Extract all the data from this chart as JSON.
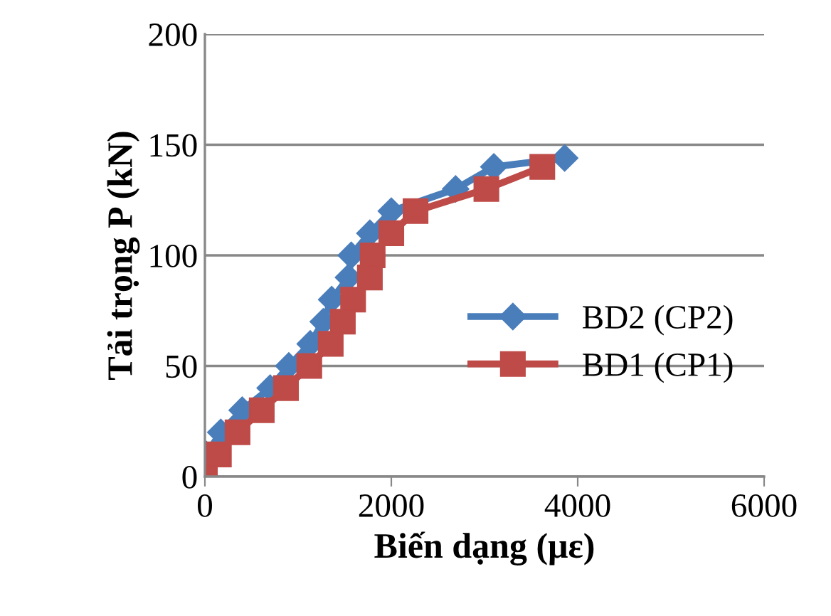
{
  "chart_data": {
    "type": "line",
    "xlabel": "Biến dạng (με)",
    "ylabel": "Tải trọng P (kN)",
    "xlim": [
      0,
      6000
    ],
    "xticks": [
      0,
      2000,
      4000,
      6000
    ],
    "ylim": [
      0,
      200
    ],
    "yticks": [
      0,
      50,
      100,
      150,
      200
    ],
    "grid": "y",
    "legend": "right",
    "series": [
      {
        "name": "BD2 (CP2)",
        "color": "#4a7ebb",
        "marker": "diamond",
        "x": [
          0,
          15,
          170,
          400,
          700,
          900,
          1130,
          1270,
          1360,
          1540,
          1570,
          1770,
          2000,
          2690,
          3100,
          3860
        ],
        "values": [
          0,
          10,
          20,
          30,
          40,
          50,
          60,
          70,
          80,
          90,
          100,
          110,
          120,
          130,
          140,
          144
        ]
      },
      {
        "name": "BD1 (CP1)",
        "color": "#be4b48",
        "marker": "square",
        "x": [
          0,
          150,
          350,
          610,
          870,
          1120,
          1350,
          1480,
          1590,
          1770,
          1800,
          2000,
          2260,
          3020,
          3620
        ],
        "values": [
          0,
          10,
          20,
          30,
          40,
          50,
          60,
          70,
          80,
          90,
          100,
          110,
          120,
          130,
          140
        ]
      }
    ]
  }
}
